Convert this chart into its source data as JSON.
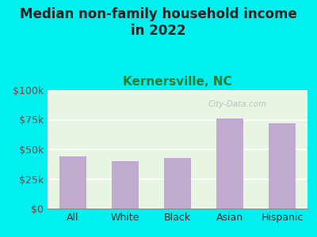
{
  "title_line1": "Median non-family household income",
  "title_line2": "in 2022",
  "subtitle": "Kernersville, NC",
  "categories": [
    "All",
    "White",
    "Black",
    "Asian",
    "Hispanic"
  ],
  "values": [
    44000,
    40000,
    43000,
    76000,
    72000
  ],
  "bar_color": "#c0aad0",
  "background_outer": "#00f0f0",
  "background_plot_color": "#e8f5e3",
  "title_color": "#222222",
  "subtitle_color": "#2e7d32",
  "axis_label_color": "#8b3a3a",
  "tick_label_color": "#333333",
  "ylim": [
    0,
    100000
  ],
  "yticks": [
    0,
    25000,
    50000,
    75000,
    100000
  ],
  "ytick_labels": [
    "$0",
    "$25k",
    "$50k",
    "$75k",
    "$100k"
  ],
  "watermark": "City-Data.com",
  "title_fontsize": 12,
  "subtitle_fontsize": 11,
  "tick_fontsize": 9,
  "bar_width": 0.52
}
